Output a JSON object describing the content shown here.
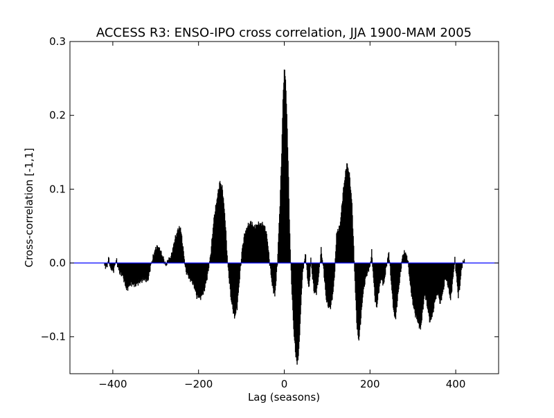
{
  "chart_data": {
    "type": "bar",
    "title": "ACCESS R3: ENSO-IPO cross correlation, JJA 1900-MAM 2005",
    "xlabel": "Lag (seasons)",
    "ylabel": "Cross-correlation [-1,1]",
    "xlim": [
      -500,
      500
    ],
    "ylim": [
      -0.15,
      0.3
    ],
    "x_ticks": [
      -400,
      -200,
      0,
      200,
      400
    ],
    "x_tick_labels": [
      "−400",
      "−200",
      "0",
      "200",
      "400"
    ],
    "y_ticks": [
      -0.1,
      0.0,
      0.1,
      0.2,
      0.3
    ],
    "y_tick_labels": [
      "−0.1",
      "0.0",
      "0.1",
      "0.2",
      "0.3"
    ],
    "grid": false,
    "bar_color": "#000000",
    "zero_line_color": "#0000ff",
    "series": [
      {
        "lag_step": 1,
        "anchor_points": [
          [
            -419,
            -0.005
          ],
          [
            -413,
            -0.004
          ],
          [
            -410,
            0.007
          ],
          [
            -405,
            -0.008
          ],
          [
            -398,
            -0.01
          ],
          [
            -392,
            0.005
          ],
          [
            -385,
            -0.012
          ],
          [
            -376,
            -0.018
          ],
          [
            -368,
            -0.036
          ],
          [
            -358,
            -0.028
          ],
          [
            -348,
            -0.03
          ],
          [
            -338,
            -0.026
          ],
          [
            -328,
            -0.022
          ],
          [
            -318,
            -0.024
          ],
          [
            -312,
            -0.005
          ],
          [
            -305,
            0.01
          ],
          [
            -300,
            0.02
          ],
          [
            -294,
            0.022
          ],
          [
            -288,
            0.015
          ],
          [
            -282,
            0.006
          ],
          [
            -276,
            -0.004
          ],
          [
            -270,
            0.005
          ],
          [
            -264,
            0.008
          ],
          [
            -256,
            0.03
          ],
          [
            -248,
            0.045
          ],
          [
            -242,
            0.048
          ],
          [
            -236,
            0.02
          ],
          [
            -230,
            -0.01
          ],
          [
            -222,
            -0.02
          ],
          [
            -212,
            -0.028
          ],
          [
            -204,
            -0.045
          ],
          [
            -196,
            -0.047
          ],
          [
            -188,
            -0.04
          ],
          [
            -180,
            -0.02
          ],
          [
            -172,
            0.01
          ],
          [
            -164,
            0.06
          ],
          [
            -156,
            0.09
          ],
          [
            -150,
            0.11
          ],
          [
            -144,
            0.1
          ],
          [
            -138,
            0.06
          ],
          [
            -132,
            0.0
          ],
          [
            -124,
            -0.05
          ],
          [
            -116,
            -0.074
          ],
          [
            -110,
            -0.06
          ],
          [
            -104,
            -0.02
          ],
          [
            -98,
            0.02
          ],
          [
            -92,
            0.04
          ],
          [
            -85,
            0.05
          ],
          [
            -78,
            0.055
          ],
          [
            -70,
            0.048
          ],
          [
            -62,
            0.052
          ],
          [
            -54,
            0.053
          ],
          [
            -46,
            0.05
          ],
          [
            -40,
            0.035
          ],
          [
            -34,
            0.0
          ],
          [
            -28,
            -0.03
          ],
          [
            -22,
            -0.045
          ],
          [
            -16,
            0.0
          ],
          [
            -10,
            0.08
          ],
          [
            -6,
            0.15
          ],
          [
            -3,
            0.22
          ],
          [
            0,
            0.262
          ],
          [
            3,
            0.25
          ],
          [
            6,
            0.2
          ],
          [
            9,
            0.14
          ],
          [
            12,
            0.06
          ],
          [
            15,
            0.0
          ],
          [
            18,
            -0.04
          ],
          [
            22,
            -0.09
          ],
          [
            26,
            -0.12
          ],
          [
            30,
            -0.138
          ],
          [
            34,
            -0.12
          ],
          [
            38,
            -0.07
          ],
          [
            42,
            -0.02
          ],
          [
            46,
            0.0
          ],
          [
            50,
            0.012
          ],
          [
            54,
            -0.02
          ],
          [
            58,
            -0.035
          ],
          [
            62,
            0.005
          ],
          [
            66,
            -0.02
          ],
          [
            70,
            -0.04
          ],
          [
            75,
            -0.04
          ],
          [
            80,
            -0.02
          ],
          [
            86,
            0.018
          ],
          [
            92,
            -0.01
          ],
          [
            98,
            -0.05
          ],
          [
            104,
            -0.06
          ],
          [
            108,
            -0.06
          ],
          [
            114,
            -0.04
          ],
          [
            118,
            -0.01
          ],
          [
            122,
            0.04
          ],
          [
            130,
            0.05
          ],
          [
            138,
            0.1
          ],
          [
            146,
            0.135
          ],
          [
            152,
            0.12
          ],
          [
            158,
            0.08
          ],
          [
            162,
            0.02
          ],
          [
            166,
            -0.04
          ],
          [
            170,
            -0.09
          ],
          [
            174,
            -0.105
          ],
          [
            178,
            -0.08
          ],
          [
            184,
            -0.04
          ],
          [
            190,
            -0.02
          ],
          [
            196,
            -0.01
          ],
          [
            200,
            -0.005
          ],
          [
            204,
            0.015
          ],
          [
            208,
            -0.02
          ],
          [
            212,
            -0.05
          ],
          [
            216,
            -0.06
          ],
          [
            220,
            -0.04
          ],
          [
            226,
            -0.02
          ],
          [
            232,
            -0.03
          ],
          [
            238,
            -0.005
          ],
          [
            244,
            0.015
          ],
          [
            250,
            -0.03
          ],
          [
            256,
            -0.07
          ],
          [
            260,
            -0.075
          ],
          [
            264,
            -0.05
          ],
          [
            270,
            -0.02
          ],
          [
            276,
            0.01
          ],
          [
            282,
            0.015
          ],
          [
            288,
            0.005
          ],
          [
            294,
            -0.03
          ],
          [
            300,
            -0.055
          ],
          [
            306,
            -0.07
          ],
          [
            312,
            -0.08
          ],
          [
            318,
            -0.09
          ],
          [
            322,
            -0.07
          ],
          [
            328,
            -0.04
          ],
          [
            334,
            -0.06
          ],
          [
            340,
            -0.08
          ],
          [
            346,
            -0.07
          ],
          [
            352,
            -0.05
          ],
          [
            358,
            -0.04
          ],
          [
            364,
            -0.055
          ],
          [
            370,
            -0.04
          ],
          [
            376,
            -0.02
          ],
          [
            382,
            -0.03
          ],
          [
            388,
            -0.05
          ],
          [
            392,
            -0.03
          ],
          [
            398,
            0.005
          ],
          [
            402,
            -0.02
          ],
          [
            406,
            -0.045
          ],
          [
            410,
            -0.03
          ],
          [
            414,
            -0.005
          ],
          [
            420,
            0.005
          ]
        ]
      }
    ]
  }
}
